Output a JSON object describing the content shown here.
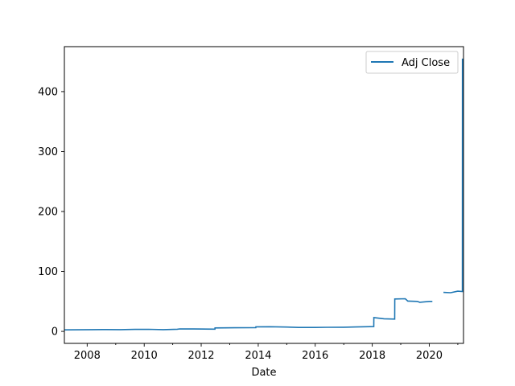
{
  "chart_data": {
    "type": "line",
    "xlabel": "Date",
    "ylabel": "",
    "title": "",
    "x_axis": {
      "type": "date",
      "range": [
        "2007-03-15",
        "2021-03-15"
      ],
      "major_ticks": [
        "2008",
        "2010",
        "2012",
        "2014",
        "2016",
        "2018",
        "2020"
      ]
    },
    "y_axis": {
      "range": [
        -20,
        475
      ],
      "ticks": [
        0,
        100,
        200,
        300,
        400
      ]
    },
    "grid": false,
    "legend": {
      "position": "top-right",
      "entries": [
        "Adj Close"
      ]
    },
    "colors": {
      "series": "#1f77b4"
    },
    "series": [
      {
        "name": "Adj Close",
        "segments": [
          [
            [
              "2007-03-15",
              2.6
            ],
            [
              "2007-09-01",
              2.7
            ],
            [
              "2008-03-01",
              2.9
            ],
            [
              "2008-09-01",
              3.1
            ],
            [
              "2009-03-01",
              2.9
            ],
            [
              "2009-09-01",
              3.3
            ],
            [
              "2010-03-01",
              3.5
            ],
            [
              "2010-09-01",
              3.0
            ],
            [
              "2011-03-01",
              3.6
            ],
            [
              "2011-04-01",
              4.2
            ],
            [
              "2011-10-01",
              4.0
            ],
            [
              "2012-06-25",
              3.8
            ],
            [
              "2012-06-26",
              5.8
            ],
            [
              "2013-03-01",
              6.0
            ],
            [
              "2013-12-01",
              6.2
            ],
            [
              "2013-12-02",
              7.6
            ],
            [
              "2014-06-01",
              7.8
            ],
            [
              "2015-01-01",
              7.2
            ],
            [
              "2015-06-01",
              6.6
            ],
            [
              "2016-01-01",
              6.5
            ],
            [
              "2016-06-01",
              6.8
            ],
            [
              "2017-01-01",
              6.9
            ],
            [
              "2017-06-01",
              7.3
            ],
            [
              "2017-12-01",
              7.9
            ],
            [
              "2018-01-20",
              8.0
            ],
            [
              "2018-01-21",
              23.0
            ],
            [
              "2018-06-01",
              21.0
            ],
            [
              "2018-10-15",
              20.5
            ],
            [
              "2018-10-16",
              54.0
            ],
            [
              "2019-03-01",
              54.5
            ],
            [
              "2019-04-01",
              50.5
            ],
            [
              "2019-08-01",
              50.0
            ],
            [
              "2019-09-01",
              48.5
            ],
            [
              "2020-01-01",
              50.0
            ],
            [
              "2020-02-10",
              50.0
            ]
          ],
          [
            [
              "2020-07-01",
              65.0
            ],
            [
              "2020-10-01",
              64.5
            ],
            [
              "2021-01-01",
              67.0
            ],
            [
              "2021-03-01",
              66.5
            ],
            [
              "2021-03-02",
              455.0
            ]
          ]
        ]
      }
    ]
  }
}
